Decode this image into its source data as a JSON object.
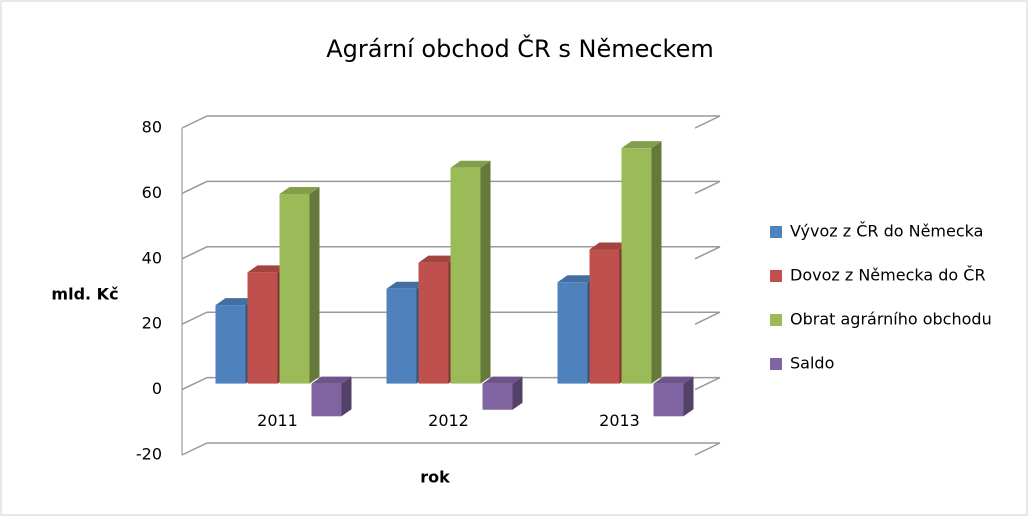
{
  "chart_data": {
    "type": "bar3d",
    "title": "Agrární obchod ČR s Německem",
    "y_label": "mld. Kč",
    "x_label": "rok",
    "categories": [
      "2011",
      "2012",
      "2013"
    ],
    "series": [
      {
        "name": "Vývoz z ČR do Německa",
        "color": "#4f81bd",
        "values": [
          24,
          29,
          31
        ]
      },
      {
        "name": "Dovoz z Německa do ČR",
        "color": "#c0504d",
        "values": [
          34,
          37,
          41
        ]
      },
      {
        "name": "Obrat agrárního obchodu",
        "color": "#9bbb59",
        "values": [
          58,
          66,
          72
        ]
      },
      {
        "name": "Saldo",
        "color": "#8064a2",
        "values": [
          -10,
          -8,
          -10
        ]
      }
    ],
    "ylim": [
      -20,
      80
    ],
    "yticks": [
      -20,
      0,
      20,
      40,
      60,
      80
    ],
    "grid": true,
    "legend": "right"
  }
}
